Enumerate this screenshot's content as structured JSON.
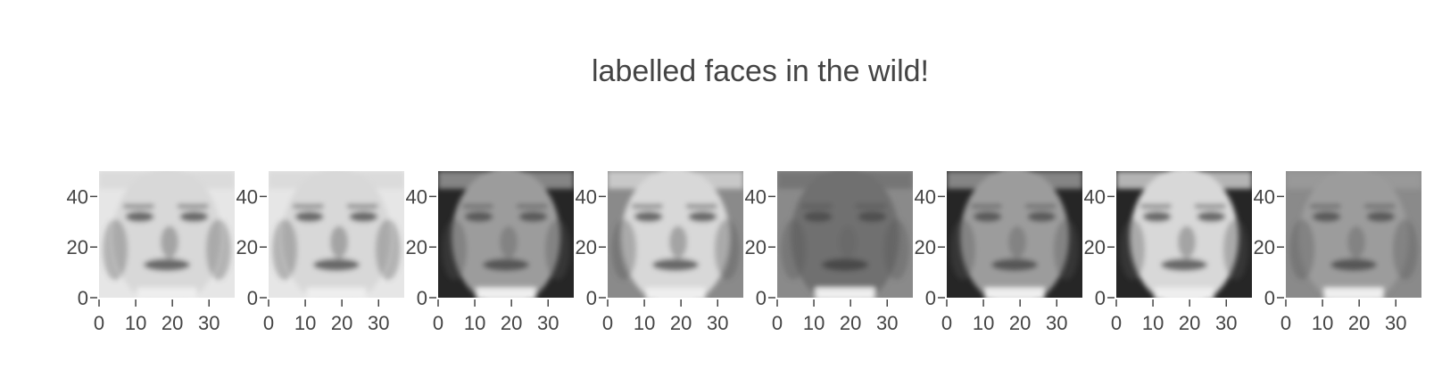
{
  "chart_data": {
    "type": "heatmap",
    "title": "labelled faces in the wild!",
    "colorscale": "greys",
    "image_width": 37,
    "image_height": 50,
    "panel_count": 8,
    "x_ticks": [
      "0",
      "10",
      "20",
      "30"
    ],
    "y_ticks": [
      "0",
      "20",
      "40"
    ],
    "x_tick_values": [
      0,
      10,
      20,
      30
    ],
    "y_tick_values": [
      0,
      20,
      40
    ],
    "xlim": [
      0,
      37
    ],
    "ylim": [
      0,
      50
    ],
    "grid": false,
    "panels": [
      {
        "tone": "light",
        "background": "light"
      },
      {
        "tone": "light",
        "background": "light"
      },
      {
        "tone": "mid",
        "background": "dark"
      },
      {
        "tone": "light",
        "background": "mid"
      },
      {
        "tone": "dark",
        "background": "mid"
      },
      {
        "tone": "mid",
        "background": "dark"
      },
      {
        "tone": "light",
        "background": "dark"
      },
      {
        "tone": "mid",
        "background": "mid"
      }
    ]
  }
}
